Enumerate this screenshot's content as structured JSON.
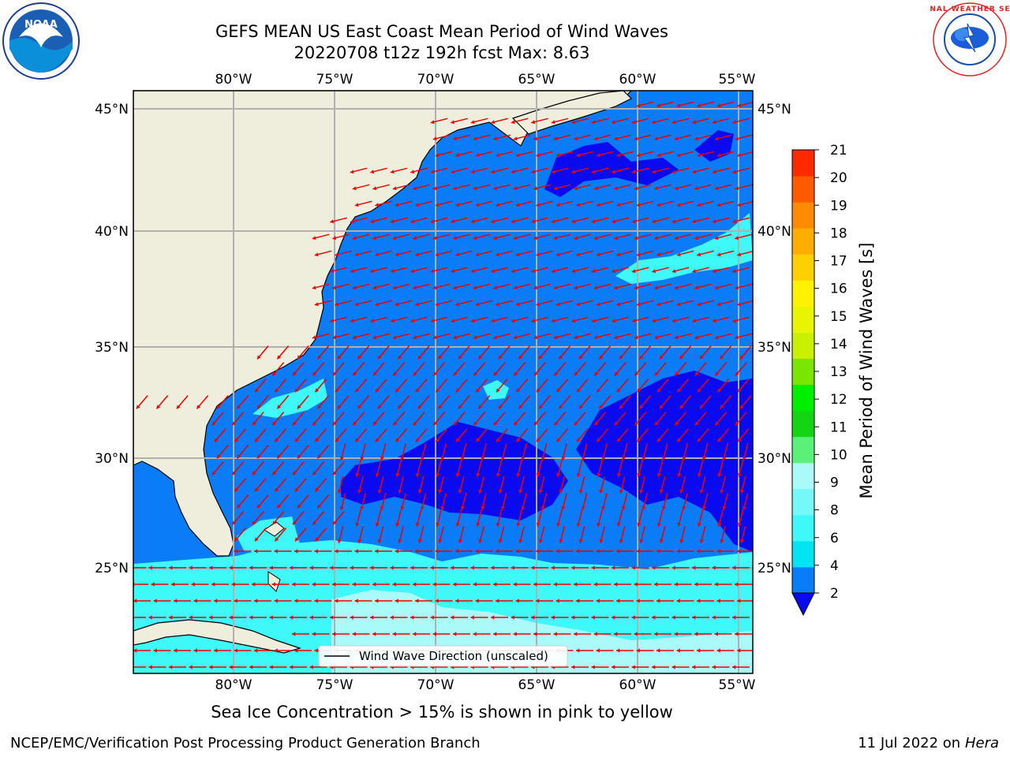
{
  "title_line1": "GEFS MEAN US East Coast Mean Period of Wind Waves",
  "title_line2": "20220708 t12z 192h fcst   Max: 8.63",
  "lon_ticks": [
    "80°W",
    "75°W",
    "70°W",
    "65°W",
    "60°W",
    "55°W"
  ],
  "lat_ticks": [
    "45°N",
    "40°N",
    "35°N",
    "30°N",
    "25°N"
  ],
  "colorbar": {
    "label": "Mean Period of Wind Waves [s]",
    "ticks": [
      "2",
      "4",
      "6",
      "8",
      "9",
      "10",
      "11",
      "12",
      "13",
      "14",
      "15",
      "16",
      "17",
      "18",
      "19",
      "20",
      "21"
    ],
    "colors": [
      "#0a7cf8",
      "#00e4f4",
      "#3ff8f8",
      "#74f8f8",
      "#aafafa",
      "#5af07a",
      "#14d414",
      "#00ee00",
      "#7ae600",
      "#c8f000",
      "#e8f400",
      "#fff200",
      "#ffd000",
      "#ffae00",
      "#ff8c00",
      "#ff5a00",
      "#ff2a00",
      "#ff0000"
    ],
    "under_color": "#0a0af0"
  },
  "legend_label": "Wind Wave Direction (unscaled)",
  "note": "Sea Ice Concentration > 15% is shown in pink to yellow",
  "credit": "NCEP/EMC/Verification Post Processing Product Generation Branch",
  "date_prefix": "11 Jul 2022 on ",
  "date_host": "Hera",
  "logos": {
    "left": "NOAA",
    "right": "NATIONAL WEATHER SERVICE"
  },
  "colors": {
    "land": "#efeedd",
    "deep_blue": "#0a0af0",
    "mid_blue": "#0a7cf8",
    "arrow": "#ee0000"
  }
}
